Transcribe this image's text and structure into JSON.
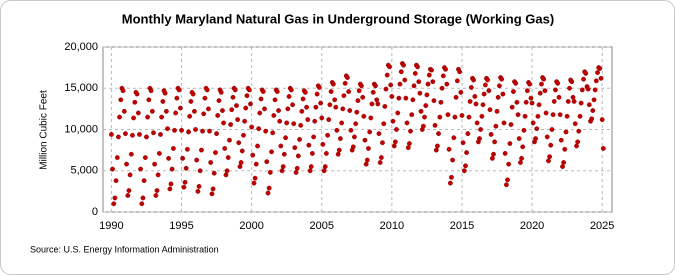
{
  "chart_data": {
    "type": "scatter",
    "title": "Monthly Maryland Natural Gas in Underground Storage (Working Gas)",
    "y_label": "Million Cubic Feet",
    "source": "Source: U.S. Energy Information Administration",
    "color": "#c00000",
    "grid": true,
    "xlim": [
      1989.4,
      2025.7
    ],
    "xticks": [
      1990,
      1995,
      2000,
      2005,
      2010,
      2015,
      2020,
      2025
    ],
    "ylim": [
      0,
      20000
    ],
    "yticks": [
      0,
      {
        "value": 5000,
        "label": "5,000"
      },
      {
        "value": 10000,
        "label": "10,000"
      },
      {
        "value": 15000,
        "label": "15,000"
      },
      {
        "value": 20000,
        "label": "20,000"
      }
    ],
    "x": [
      1990.0,
      1990.08,
      1990.17,
      1990.25,
      1990.33,
      1990.42,
      1990.5,
      1990.58,
      1990.67,
      1990.75,
      1990.83,
      1990.92,
      1991.0,
      1991.08,
      1991.17,
      1991.25,
      1991.33,
      1991.42,
      1991.5,
      1991.58,
      1991.67,
      1991.75,
      1991.83,
      1991.92,
      1992.0,
      1992.08,
      1992.17,
      1992.25,
      1992.33,
      1992.42,
      1992.5,
      1992.58,
      1992.67,
      1992.75,
      1992.83,
      1992.92,
      1993.0,
      1993.08,
      1993.17,
      1993.25,
      1993.33,
      1993.42,
      1993.5,
      1993.58,
      1993.67,
      1993.75,
      1993.83,
      1993.92,
      1994.0,
      1994.08,
      1994.17,
      1994.25,
      1994.33,
      1994.42,
      1994.5,
      1994.58,
      1994.67,
      1994.75,
      1994.83,
      1994.92,
      1995.0,
      1995.08,
      1995.17,
      1995.25,
      1995.33,
      1995.42,
      1995.5,
      1995.58,
      1995.67,
      1995.75,
      1995.83,
      1995.92,
      1996.0,
      1996.08,
      1996.17,
      1996.25,
      1996.33,
      1996.42,
      1996.5,
      1996.58,
      1996.67,
      1996.75,
      1996.83,
      1996.92,
      1997.0,
      1997.08,
      1997.17,
      1997.25,
      1997.33,
      1997.42,
      1997.5,
      1997.58,
      1997.67,
      1997.75,
      1997.83,
      1997.92,
      1998.0,
      1998.08,
      1998.17,
      1998.25,
      1998.33,
      1998.42,
      1998.5,
      1998.58,
      1998.67,
      1998.75,
      1998.83,
      1998.92,
      1999.0,
      1999.08,
      1999.17,
      1999.25,
      1999.33,
      1999.42,
      1999.5,
      1999.58,
      1999.67,
      1999.75,
      1999.83,
      1999.92,
      2000.0,
      2000.08,
      2000.17,
      2000.25,
      2000.33,
      2000.42,
      2000.5,
      2000.58,
      2000.67,
      2000.75,
      2000.83,
      2000.92,
      2001.0,
      2001.08,
      2001.17,
      2001.25,
      2001.33,
      2001.42,
      2001.5,
      2001.58,
      2001.67,
      2001.75,
      2001.83,
      2001.92,
      2002.0,
      2002.08,
      2002.17,
      2002.25,
      2002.33,
      2002.42,
      2002.5,
      2002.58,
      2002.67,
      2002.75,
      2002.83,
      2002.92,
      2003.0,
      2003.08,
      2003.17,
      2003.25,
      2003.33,
      2003.42,
      2003.5,
      2003.58,
      2003.67,
      2003.75,
      2003.83,
      2003.92,
      2004.0,
      2004.08,
      2004.17,
      2004.25,
      2004.33,
      2004.42,
      2004.5,
      2004.58,
      2004.67,
      2004.75,
      2004.83,
      2004.92,
      2005.0,
      2005.08,
      2005.17,
      2005.25,
      2005.33,
      2005.42,
      2005.5,
      2005.58,
      2005.67,
      2005.75,
      2005.83,
      2005.92,
      2006.0,
      2006.08,
      2006.17,
      2006.25,
      2006.33,
      2006.42,
      2006.5,
      2006.58,
      2006.67,
      2006.75,
      2006.83,
      2006.92,
      2007.0,
      2007.08,
      2007.17,
      2007.25,
      2007.33,
      2007.42,
      2007.5,
      2007.58,
      2007.67,
      2007.75,
      2007.83,
      2007.92,
      2008.0,
      2008.08,
      2008.17,
      2008.25,
      2008.33,
      2008.42,
      2008.5,
      2008.58,
      2008.67,
      2008.75,
      2008.83,
      2008.92,
      2009.0,
      2009.08,
      2009.17,
      2009.25,
      2009.33,
      2009.42,
      2009.5,
      2009.58,
      2009.67,
      2009.75,
      2009.83,
      2009.92,
      2010.0,
      2010.08,
      2010.17,
      2010.25,
      2010.33,
      2010.42,
      2010.5,
      2010.58,
      2010.67,
      2010.75,
      2010.83,
      2010.92,
      2011.0,
      2011.08,
      2011.17,
      2011.25,
      2011.33,
      2011.42,
      2011.5,
      2011.58,
      2011.67,
      2011.75,
      2011.83,
      2011.92,
      2012.0,
      2012.08,
      2012.17,
      2012.25,
      2012.33,
      2012.42,
      2012.5,
      2012.58,
      2012.67,
      2012.75,
      2012.83,
      2012.92,
      2013.0,
      2013.08,
      2013.17,
      2013.25,
      2013.33,
      2013.42,
      2013.5,
      2013.58,
      2013.67,
      2013.75,
      2013.83,
      2013.92,
      2014.0,
      2014.08,
      2014.17,
      2014.25,
      2014.33,
      2014.42,
      2014.5,
      2014.58,
      2014.67,
      2014.75,
      2014.83,
      2014.92,
      2015.0,
      2015.08,
      2015.17,
      2015.25,
      2015.33,
      2015.42,
      2015.5,
      2015.58,
      2015.67,
      2015.75,
      2015.83,
      2015.92,
      2016.0,
      2016.08,
      2016.17,
      2016.25,
      2016.33,
      2016.42,
      2016.5,
      2016.58,
      2016.67,
      2016.75,
      2016.83,
      2016.92,
      2017.0,
      2017.08,
      2017.17,
      2017.25,
      2017.33,
      2017.42,
      2017.5,
      2017.58,
      2017.67,
      2017.75,
      2017.83,
      2017.92,
      2018.0,
      2018.08,
      2018.17,
      2018.25,
      2018.33,
      2018.42,
      2018.5,
      2018.58,
      2018.67,
      2018.75,
      2018.83,
      2018.92,
      2019.0,
      2019.08,
      2019.17,
      2019.25,
      2019.33,
      2019.42,
      2019.5,
      2019.58,
      2019.67,
      2019.75,
      2019.83,
      2019.92,
      2020.0,
      2020.08,
      2020.17,
      2020.25,
      2020.33,
      2020.42,
      2020.5,
      2020.58,
      2020.67,
      2020.75,
      2020.83,
      2020.92,
      2021.0,
      2021.08,
      2021.17,
      2021.25,
      2021.33,
      2021.42,
      2021.5,
      2021.58,
      2021.67,
      2021.75,
      2021.83,
      2021.92,
      2022.0,
      2022.08,
      2022.17,
      2022.25,
      2022.33,
      2022.42,
      2022.5,
      2022.58,
      2022.67,
      2022.75,
      2022.83,
      2022.92,
      2023.0,
      2023.08,
      2023.17,
      2023.25,
      2023.33,
      2023.42,
      2023.5,
      2023.58,
      2023.67,
      2023.75,
      2023.83,
      2023.92,
      2024.0,
      2024.08,
      2024.17,
      2024.25,
      2024.33,
      2024.42,
      2024.5,
      2024.58,
      2024.67,
      2024.75,
      2024.83,
      2024.92,
      2025.0,
      2025.08
    ],
    "values": [
      9400,
      5200,
      1000,
      1700,
      3800,
      6600,
      9100,
      11500,
      13600,
      15000,
      14700,
      12200,
      9500,
      5800,
      2000,
      2600,
      4500,
      7000,
      9300,
      11400,
      13300,
      14500,
      14300,
      12000,
      9400,
      5200,
      1000,
      1700,
      3800,
      6600,
      9100,
      11500,
      13600,
      15000,
      14700,
      12200,
      9600,
      5800,
      2000,
      2600,
      4500,
      7100,
      9400,
      11500,
      13400,
      14700,
      14400,
      12200,
      10100,
      6500,
      2800,
      3400,
      5200,
      7700,
      9900,
      12000,
      13800,
      15000,
      14800,
      12600,
      9900,
      6500,
      3000,
      3600,
      5300,
      7600,
      9700,
      11600,
      13400,
      14500,
      14300,
      12200,
      10000,
      6300,
      2500,
      3100,
      5000,
      7500,
      9800,
      11900,
      13800,
      15000,
      14800,
      12500,
      9800,
      6000,
      2200,
      2800,
      4700,
      7200,
      9500,
      11700,
      13500,
      14800,
      14500,
      12300,
      10800,
      7700,
      4500,
      5000,
      6600,
      8700,
      10600,
      12400,
      13900,
      15000,
      14800,
      12900,
      11200,
      8400,
      5500,
      6000,
      7400,
      9300,
      11000,
      12600,
      14100,
      15000,
      14800,
      13100,
      10300,
      6900,
      3500,
      4100,
      5800,
      8000,
      10100,
      12000,
      13700,
      14800,
      14600,
      12500,
      9800,
      6100,
      2300,
      2900,
      4800,
      7300,
      9600,
      11700,
      13600,
      14800,
      14600,
      12300,
      11000,
      8000,
      5000,
      5500,
      7000,
      9000,
      10800,
      12500,
      14000,
      15000,
      14800,
      13000,
      10700,
      7800,
      4800,
      5300,
      6800,
      8800,
      10500,
      12200,
      13700,
      14700,
      14500,
      12700,
      11200,
      8100,
      5000,
      5500,
      7100,
      9100,
      11000,
      12700,
      14300,
      15300,
      15100,
      13200,
      11400,
      8200,
      5000,
      5500,
      7100,
      9300,
      11200,
      13000,
      14600,
      15700,
      15500,
      13600,
      12700,
      9900,
      7000,
      7500,
      8900,
      10800,
      12500,
      14100,
      15600,
      16500,
      16300,
      14600,
      12300,
      9900,
      7500,
      7900,
      9100,
      10700,
      12100,
      13500,
      14700,
      15500,
      15300,
      13900,
      11600,
      8700,
      5800,
      6300,
      7700,
      9700,
      11400,
      13100,
      14500,
      15500,
      15300,
      13600,
      13100,
      9500,
      6000,
      6600,
      8400,
      10700,
      12800,
      14900,
      16600,
      17800,
      17600,
      15400,
      14000,
      11000,
      8000,
      8500,
      10000,
      12000,
      13800,
      15500,
      17000,
      18000,
      17800,
      16000,
      13800,
      10800,
      7800,
      8300,
      9800,
      11800,
      13600,
      15300,
      16800,
      17800,
      17600,
      15800,
      14400,
      12200,
      10000,
      10400,
      11500,
      12900,
      14200,
      15500,
      16600,
      17300,
      17200,
      15800,
      13500,
      10500,
      7500,
      8000,
      9500,
      11500,
      13300,
      15000,
      16500,
      17500,
      17300,
      15500,
      11800,
      7600,
      3500,
      4200,
      6300,
      9000,
      11500,
      13900,
      15900,
      17300,
      17000,
      14500,
      11700,
      8400,
      5000,
      5600,
      7200,
      9500,
      11500,
      13400,
      15100,
      16200,
      16000,
      14000,
      13100,
      10800,
      8500,
      8900,
      10000,
      11600,
      13000,
      14300,
      15400,
      16200,
      16000,
      14700,
      12400,
      9400,
      6500,
      7000,
      8500,
      10400,
      12200,
      13900,
      15300,
      16300,
      16100,
      14300,
      10800,
      7100,
      3300,
      3900,
      5800,
      8300,
      10600,
      12700,
      14600,
      15800,
      15600,
      13300,
      11800,
      8900,
      6000,
      6500,
      7900,
      9900,
      11600,
      13300,
      14700,
      15700,
      15500,
      13800,
      13200,
      10800,
      8500,
      8900,
      10100,
      11600,
      13000,
      14400,
      15500,
      16300,
      16100,
      14700,
      12000,
      9100,
      6200,
      6700,
      8100,
      10000,
      11800,
      13400,
      14800,
      15800,
      15600,
      13900,
      11800,
      8700,
      5500,
      6000,
      7600,
      9700,
      11600,
      13400,
      15000,
      16000,
      15800,
      13900,
      13400,
      10700,
      8000,
      8500,
      9800,
      11600,
      13200,
      14800,
      16100,
      17000,
      16800,
      15200,
      14900,
      13000,
      11000,
      11300,
      12300,
      13600,
      14800,
      15900,
      16900,
      17500,
      17400,
      16200,
      11200,
      7700
    ]
  }
}
